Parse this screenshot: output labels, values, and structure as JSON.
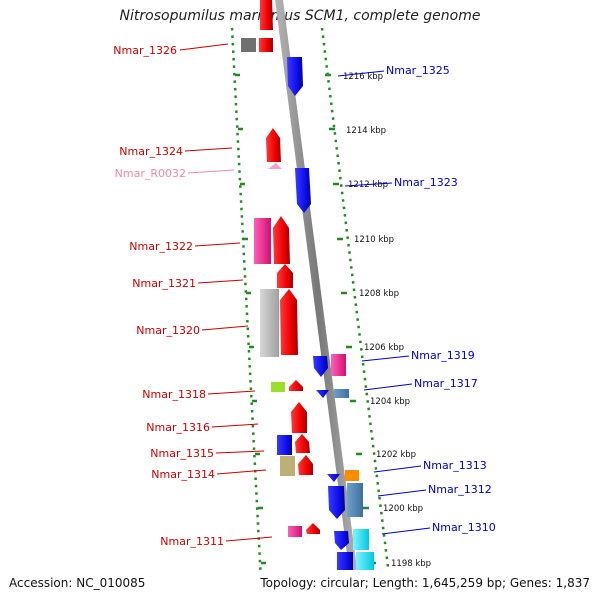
{
  "title": "Nitrosopumilus maritimus SCM1, complete genome",
  "footer": {
    "accession": "Accession: NC_010085",
    "topology": "Topology: circular; Length: 1,645,259 bp; Genes: 1,837"
  },
  "colors": {
    "backbone": "#8a8a8a",
    "dots": "#228b22",
    "left_label": "#cc0000",
    "right_label": "#0000cc",
    "rna_label": "#f08aa8"
  },
  "kbp_ticks": [
    "1216 kbp",
    "1214 kbp",
    "1212 kbp",
    "1210 kbp",
    "1208 kbp",
    "1206 kbp",
    "1204 kbp",
    "1202 kbp",
    "1200 kbp",
    "1198 kbp"
  ],
  "left_genes": [
    {
      "name": "Nmar_1326",
      "color": "red"
    },
    {
      "name": "Nmar_1324",
      "color": "red"
    },
    {
      "name": "Nmar_R0032",
      "color": "pink"
    },
    {
      "name": "Nmar_1322",
      "color": "red"
    },
    {
      "name": "Nmar_1321",
      "color": "red"
    },
    {
      "name": "Nmar_1320",
      "color": "red"
    },
    {
      "name": "Nmar_1318",
      "color": "red"
    },
    {
      "name": "Nmar_1316",
      "color": "red"
    },
    {
      "name": "Nmar_1315",
      "color": "red"
    },
    {
      "name": "Nmar_1314",
      "color": "red"
    },
    {
      "name": "Nmar_1311",
      "color": "red"
    }
  ],
  "right_genes": [
    {
      "name": "Nmar_1325"
    },
    {
      "name": "Nmar_1323"
    },
    {
      "name": "Nmar_1319"
    },
    {
      "name": "Nmar_1317"
    },
    {
      "name": "Nmar_1313"
    },
    {
      "name": "Nmar_1312"
    },
    {
      "name": "Nmar_1310"
    }
  ]
}
